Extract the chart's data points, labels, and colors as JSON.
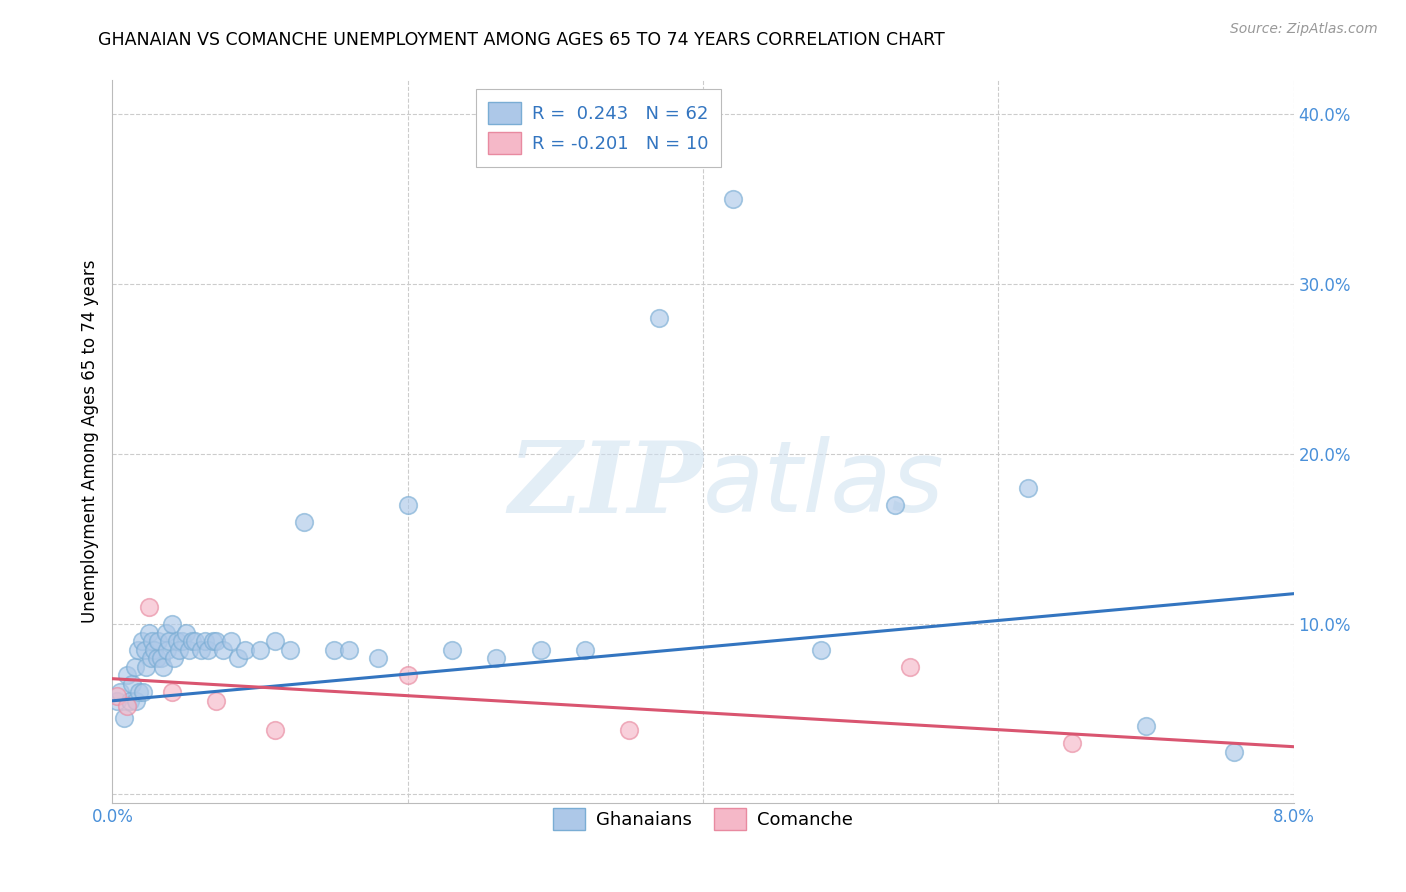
{
  "title": "GHANAIAN VS COMANCHE UNEMPLOYMENT AMONG AGES 65 TO 74 YEARS CORRELATION CHART",
  "source": "Source: ZipAtlas.com",
  "ylabel": "Unemployment Among Ages 65 to 74 years",
  "xlim": [
    0.0,
    0.08
  ],
  "ylim": [
    -0.005,
    0.42
  ],
  "yticks": [
    0.0,
    0.1,
    0.2,
    0.3,
    0.4
  ],
  "xticks": [
    0.0,
    0.02,
    0.04,
    0.06,
    0.08
  ],
  "xtick_labels": [
    "0.0%",
    "",
    "",
    "",
    "8.0%"
  ],
  "ytick_labels": [
    "",
    "10.0%",
    "20.0%",
    "30.0%",
    "40.0%"
  ],
  "watermark_zip": "ZIP",
  "watermark_atlas": "atlas",
  "ghanaian_color": "#adc8e8",
  "ghanaian_edge_color": "#7aadd4",
  "comanche_color": "#f5b8c8",
  "comanche_edge_color": "#e88aa0",
  "ghanaian_line_color": "#3375c0",
  "comanche_line_color": "#d95570",
  "tick_color": "#4a90d9",
  "ghanaian_R": 0.243,
  "ghanaian_N": 62,
  "comanche_R": -0.201,
  "comanche_N": 10,
  "ghanaian_scatter_x": [
    0.0003,
    0.0005,
    0.0008,
    0.001,
    0.0012,
    0.0013,
    0.0015,
    0.0016,
    0.0017,
    0.0018,
    0.002,
    0.0021,
    0.0022,
    0.0023,
    0.0025,
    0.0026,
    0.0027,
    0.0028,
    0.003,
    0.0031,
    0.0033,
    0.0034,
    0.0036,
    0.0037,
    0.0038,
    0.004,
    0.0042,
    0.0044,
    0.0045,
    0.0047,
    0.005,
    0.0052,
    0.0054,
    0.0056,
    0.006,
    0.0063,
    0.0065,
    0.0068,
    0.007,
    0.0075,
    0.008,
    0.0085,
    0.009,
    0.01,
    0.011,
    0.012,
    0.013,
    0.015,
    0.016,
    0.018,
    0.02,
    0.023,
    0.026,
    0.029,
    0.032,
    0.037,
    0.042,
    0.048,
    0.053,
    0.062,
    0.07,
    0.076
  ],
  "ghanaian_scatter_y": [
    0.055,
    0.06,
    0.045,
    0.07,
    0.055,
    0.065,
    0.075,
    0.055,
    0.085,
    0.06,
    0.09,
    0.06,
    0.085,
    0.075,
    0.095,
    0.08,
    0.09,
    0.085,
    0.08,
    0.09,
    0.08,
    0.075,
    0.095,
    0.085,
    0.09,
    0.1,
    0.08,
    0.09,
    0.085,
    0.09,
    0.095,
    0.085,
    0.09,
    0.09,
    0.085,
    0.09,
    0.085,
    0.09,
    0.09,
    0.085,
    0.09,
    0.08,
    0.085,
    0.085,
    0.09,
    0.085,
    0.16,
    0.085,
    0.085,
    0.08,
    0.17,
    0.085,
    0.08,
    0.085,
    0.085,
    0.28,
    0.35,
    0.085,
    0.17,
    0.18,
    0.04,
    0.025
  ],
  "comanche_scatter_x": [
    0.0003,
    0.001,
    0.0025,
    0.004,
    0.007,
    0.011,
    0.02,
    0.035,
    0.054,
    0.065
  ],
  "comanche_scatter_y": [
    0.058,
    0.052,
    0.11,
    0.06,
    0.055,
    0.038,
    0.07,
    0.038,
    0.075,
    0.03
  ],
  "ghanaian_trend_x": [
    0.0,
    0.08
  ],
  "ghanaian_trend_y": [
    0.055,
    0.118
  ],
  "comanche_trend_x": [
    0.0,
    0.08
  ],
  "comanche_trend_y": [
    0.068,
    0.028
  ]
}
